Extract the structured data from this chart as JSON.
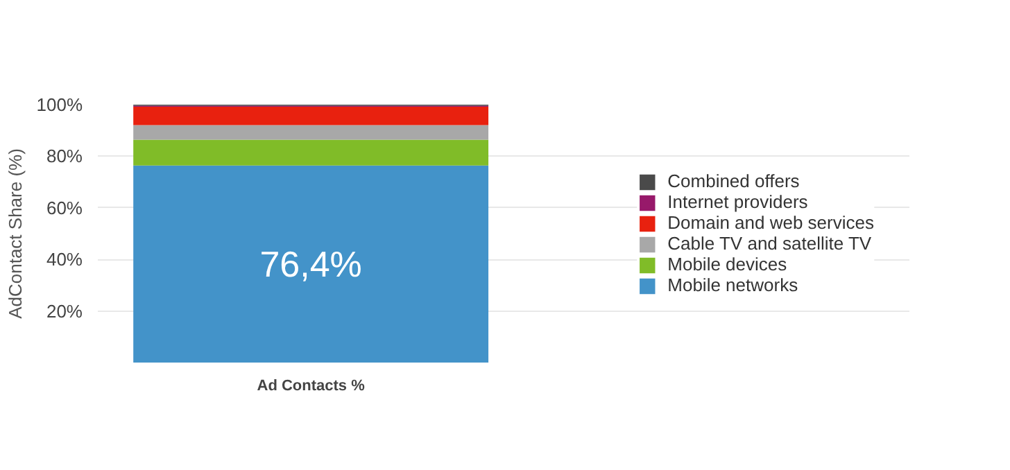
{
  "chart_data": {
    "type": "bar",
    "stacked": true,
    "categories": [
      "Ad Contacts %"
    ],
    "ylabel": "AdContact Share (%)",
    "ylim": [
      0,
      100
    ],
    "yticks": [
      {
        "value": 20,
        "label": "20%"
      },
      {
        "value": 40,
        "label": "40%"
      },
      {
        "value": 60,
        "label": "60%"
      },
      {
        "value": 80,
        "label": "80%"
      },
      {
        "value": 100,
        "label": "100%"
      }
    ],
    "grid": "y",
    "legend": "right",
    "series": [
      {
        "name": "Mobile networks",
        "color": "#4393c9",
        "values": [
          76.4
        ],
        "value_labels": [
          "76,4%"
        ]
      },
      {
        "name": "Mobile devices",
        "color": "#80bc28",
        "values": [
          10.0
        ]
      },
      {
        "name": "Cable TV and satellite TV",
        "color": "#a8a8a8",
        "values": [
          5.7
        ]
      },
      {
        "name": "Domain and web services",
        "color": "#e8210f",
        "values": [
          7.1
        ]
      },
      {
        "name": "Internet providers",
        "color": "#97196a",
        "values": [
          0.4
        ]
      },
      {
        "name": "Combined offers",
        "color": "#4a4a4a",
        "values": [
          0.4
        ]
      }
    ]
  }
}
